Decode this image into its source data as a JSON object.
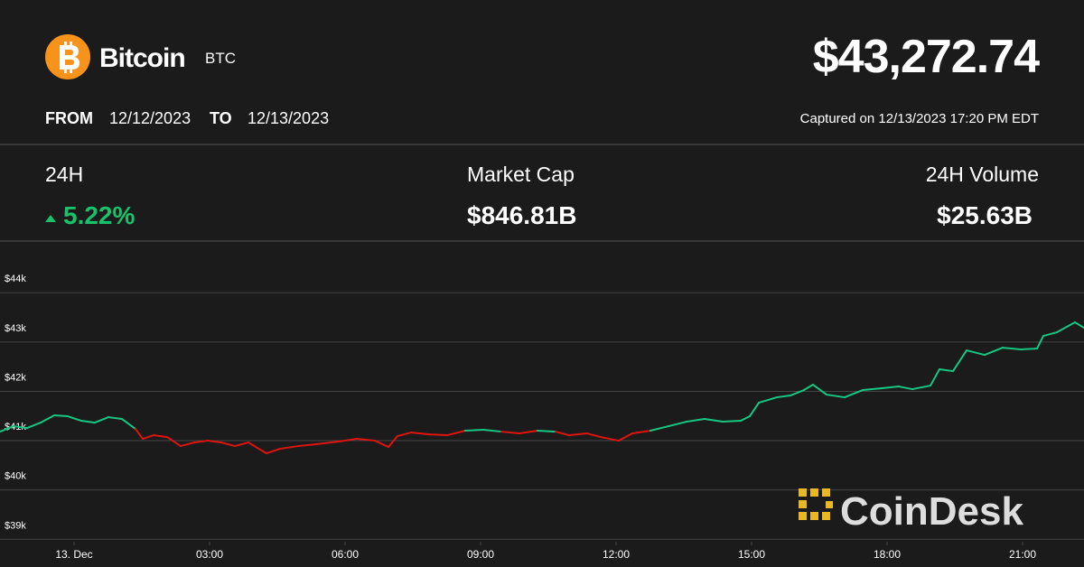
{
  "header": {
    "name": "Bitcoin",
    "symbol": "BTC",
    "price": "$43,272.74",
    "from_label": "FROM",
    "from_date": "12/12/2023",
    "to_label": "TO",
    "to_date": "12/13/2023",
    "captured": "Captured on 12/13/2023 17:20 PM EDT"
  },
  "stats": [
    {
      "label": "24H",
      "value": "5.22%"
    },
    {
      "label": "Market Cap",
      "value": "$846.81B"
    },
    {
      "label": "24H Volume",
      "value": "$25.63B"
    }
  ],
  "watermark": "CoinDesk",
  "chart_data": {
    "type": "line",
    "x": [
      -1.64,
      -1.34,
      -1.04,
      -0.74,
      -0.44,
      -0.14,
      0.16,
      0.46,
      0.76,
      1.06,
      1.36,
      1.52,
      1.76,
      2.06,
      2.36,
      2.66,
      2.96,
      3.26,
      3.56,
      3.86,
      4.26,
      4.56,
      4.96,
      5.36,
      5.86,
      6.26,
      6.66,
      6.96,
      7.16,
      7.46,
      7.86,
      8.26,
      8.66,
      9.06,
      9.46,
      9.86,
      10.26,
      10.66,
      10.96,
      11.36,
      11.66,
      12.06,
      12.36,
      12.76,
      13.16,
      13.56,
      13.96,
      14.36,
      14.76,
      14.96,
      15.16,
      15.56,
      15.86,
      16.16,
      16.36,
      16.66,
      17.06,
      17.46,
      17.86,
      18.26,
      18.56,
      18.96,
      19.16,
      19.46,
      19.76,
      20.16,
      20.56,
      20.96,
      21.32,
      21.46,
      21.76,
      22.16,
      22.36
    ],
    "values": [
      41183,
      41293,
      41256,
      41366,
      41513,
      41495,
      41403,
      41366,
      41476,
      41440,
      41238,
      41037,
      41110,
      41073,
      40890,
      40963,
      41000,
      40963,
      40890,
      40963,
      40743,
      40835,
      40890,
      40927,
      40982,
      41037,
      41000,
      40872,
      41092,
      41165,
      41128,
      41110,
      41202,
      41220,
      41183,
      41147,
      41202,
      41183,
      41110,
      41147,
      41073,
      41000,
      41147,
      41202,
      41293,
      41385,
      41440,
      41385,
      41403,
      41495,
      41769,
      41879,
      41916,
      42026,
      42136,
      41934,
      41879,
      42026,
      42062,
      42099,
      42044,
      42117,
      42447,
      42410,
      42831,
      42740,
      42886,
      42850,
      42868,
      43124,
      43198,
      43400,
      43290
    ],
    "color": "#16c784",
    "down_color": "#e0140f",
    "xlim": [
      -1.64,
      22.36
    ],
    "xticks": [
      {
        "value": 0,
        "label": "13. Dec"
      },
      {
        "value": 3,
        "label": "03:00"
      },
      {
        "value": 6,
        "label": "06:00"
      },
      {
        "value": 9,
        "label": "09:00"
      },
      {
        "value": 12,
        "label": "12:00"
      },
      {
        "value": 15,
        "label": "15:00"
      },
      {
        "value": 18,
        "label": "18:00"
      },
      {
        "value": 21,
        "label": "21:00"
      }
    ],
    "ylim": [
      38950,
      45030
    ],
    "yticks": [
      {
        "value": 39000,
        "label": "$39k"
      },
      {
        "value": 40000,
        "label": "$40k"
      },
      {
        "value": 41000,
        "label": "$41k"
      },
      {
        "value": 42000,
        "label": "$42k"
      },
      {
        "value": 43000,
        "label": "$43k"
      },
      {
        "value": 44000,
        "label": "$44k"
      }
    ],
    "grid": true
  }
}
